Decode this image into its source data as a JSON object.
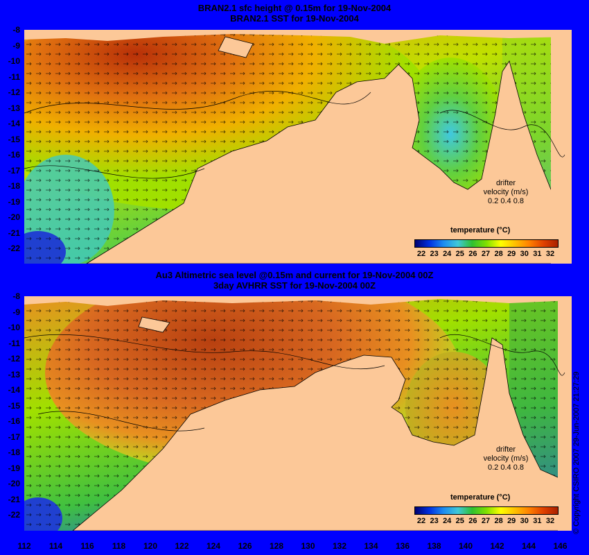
{
  "panels": [
    {
      "title1": "BRAN2.1 sfc height @ 0.15m for 19-Nov-2004",
      "title2": "BRAN2.1 SST for 19-Nov-2004",
      "legend_title": "temperature (°C)",
      "drifter_title": "drifter",
      "drifter_sub": "velocity (m/s)",
      "drifter_scale": "0.2 0.4 0.8"
    },
    {
      "title1": "Au3 Altimetric sea level  @0.15m and current for 19-Nov-2004 00Z",
      "title2": "3day AVHRR SST for 19-Nov-2004 00Z",
      "legend_title": "temperature (°C)",
      "drifter_title": "drifter",
      "drifter_sub": "velocity (m/s)",
      "drifter_scale": "0.2 0.4 0.8"
    }
  ],
  "colorbar_ticks": [
    "22",
    "23",
    "24",
    "25",
    "26",
    "27",
    "28",
    "29",
    "30",
    "31",
    "32"
  ],
  "lat_labels": [
    "-8",
    "-9",
    "-10",
    "-11",
    "-12",
    "-13",
    "-14",
    "-15",
    "-16",
    "-17",
    "-18",
    "-19",
    "-20",
    "-21",
    "-22"
  ],
  "lon_labels": [
    "112",
    "114",
    "116",
    "118",
    "120",
    "122",
    "124",
    "126",
    "128",
    "130",
    "132",
    "134",
    "136",
    "138",
    "140",
    "142",
    "144",
    "146"
  ],
  "copyright": "© Copyright CSIRO 2007  29-Jun-2007 21:27:29",
  "colors": {
    "background": "#0000fe",
    "land": "#fcc898",
    "sst_warm": "#c84810",
    "sst_cool": "#50d040"
  },
  "map": {
    "lon_range": [
      112,
      147
    ],
    "lat_range": [
      -22.5,
      -7.8
    ]
  }
}
